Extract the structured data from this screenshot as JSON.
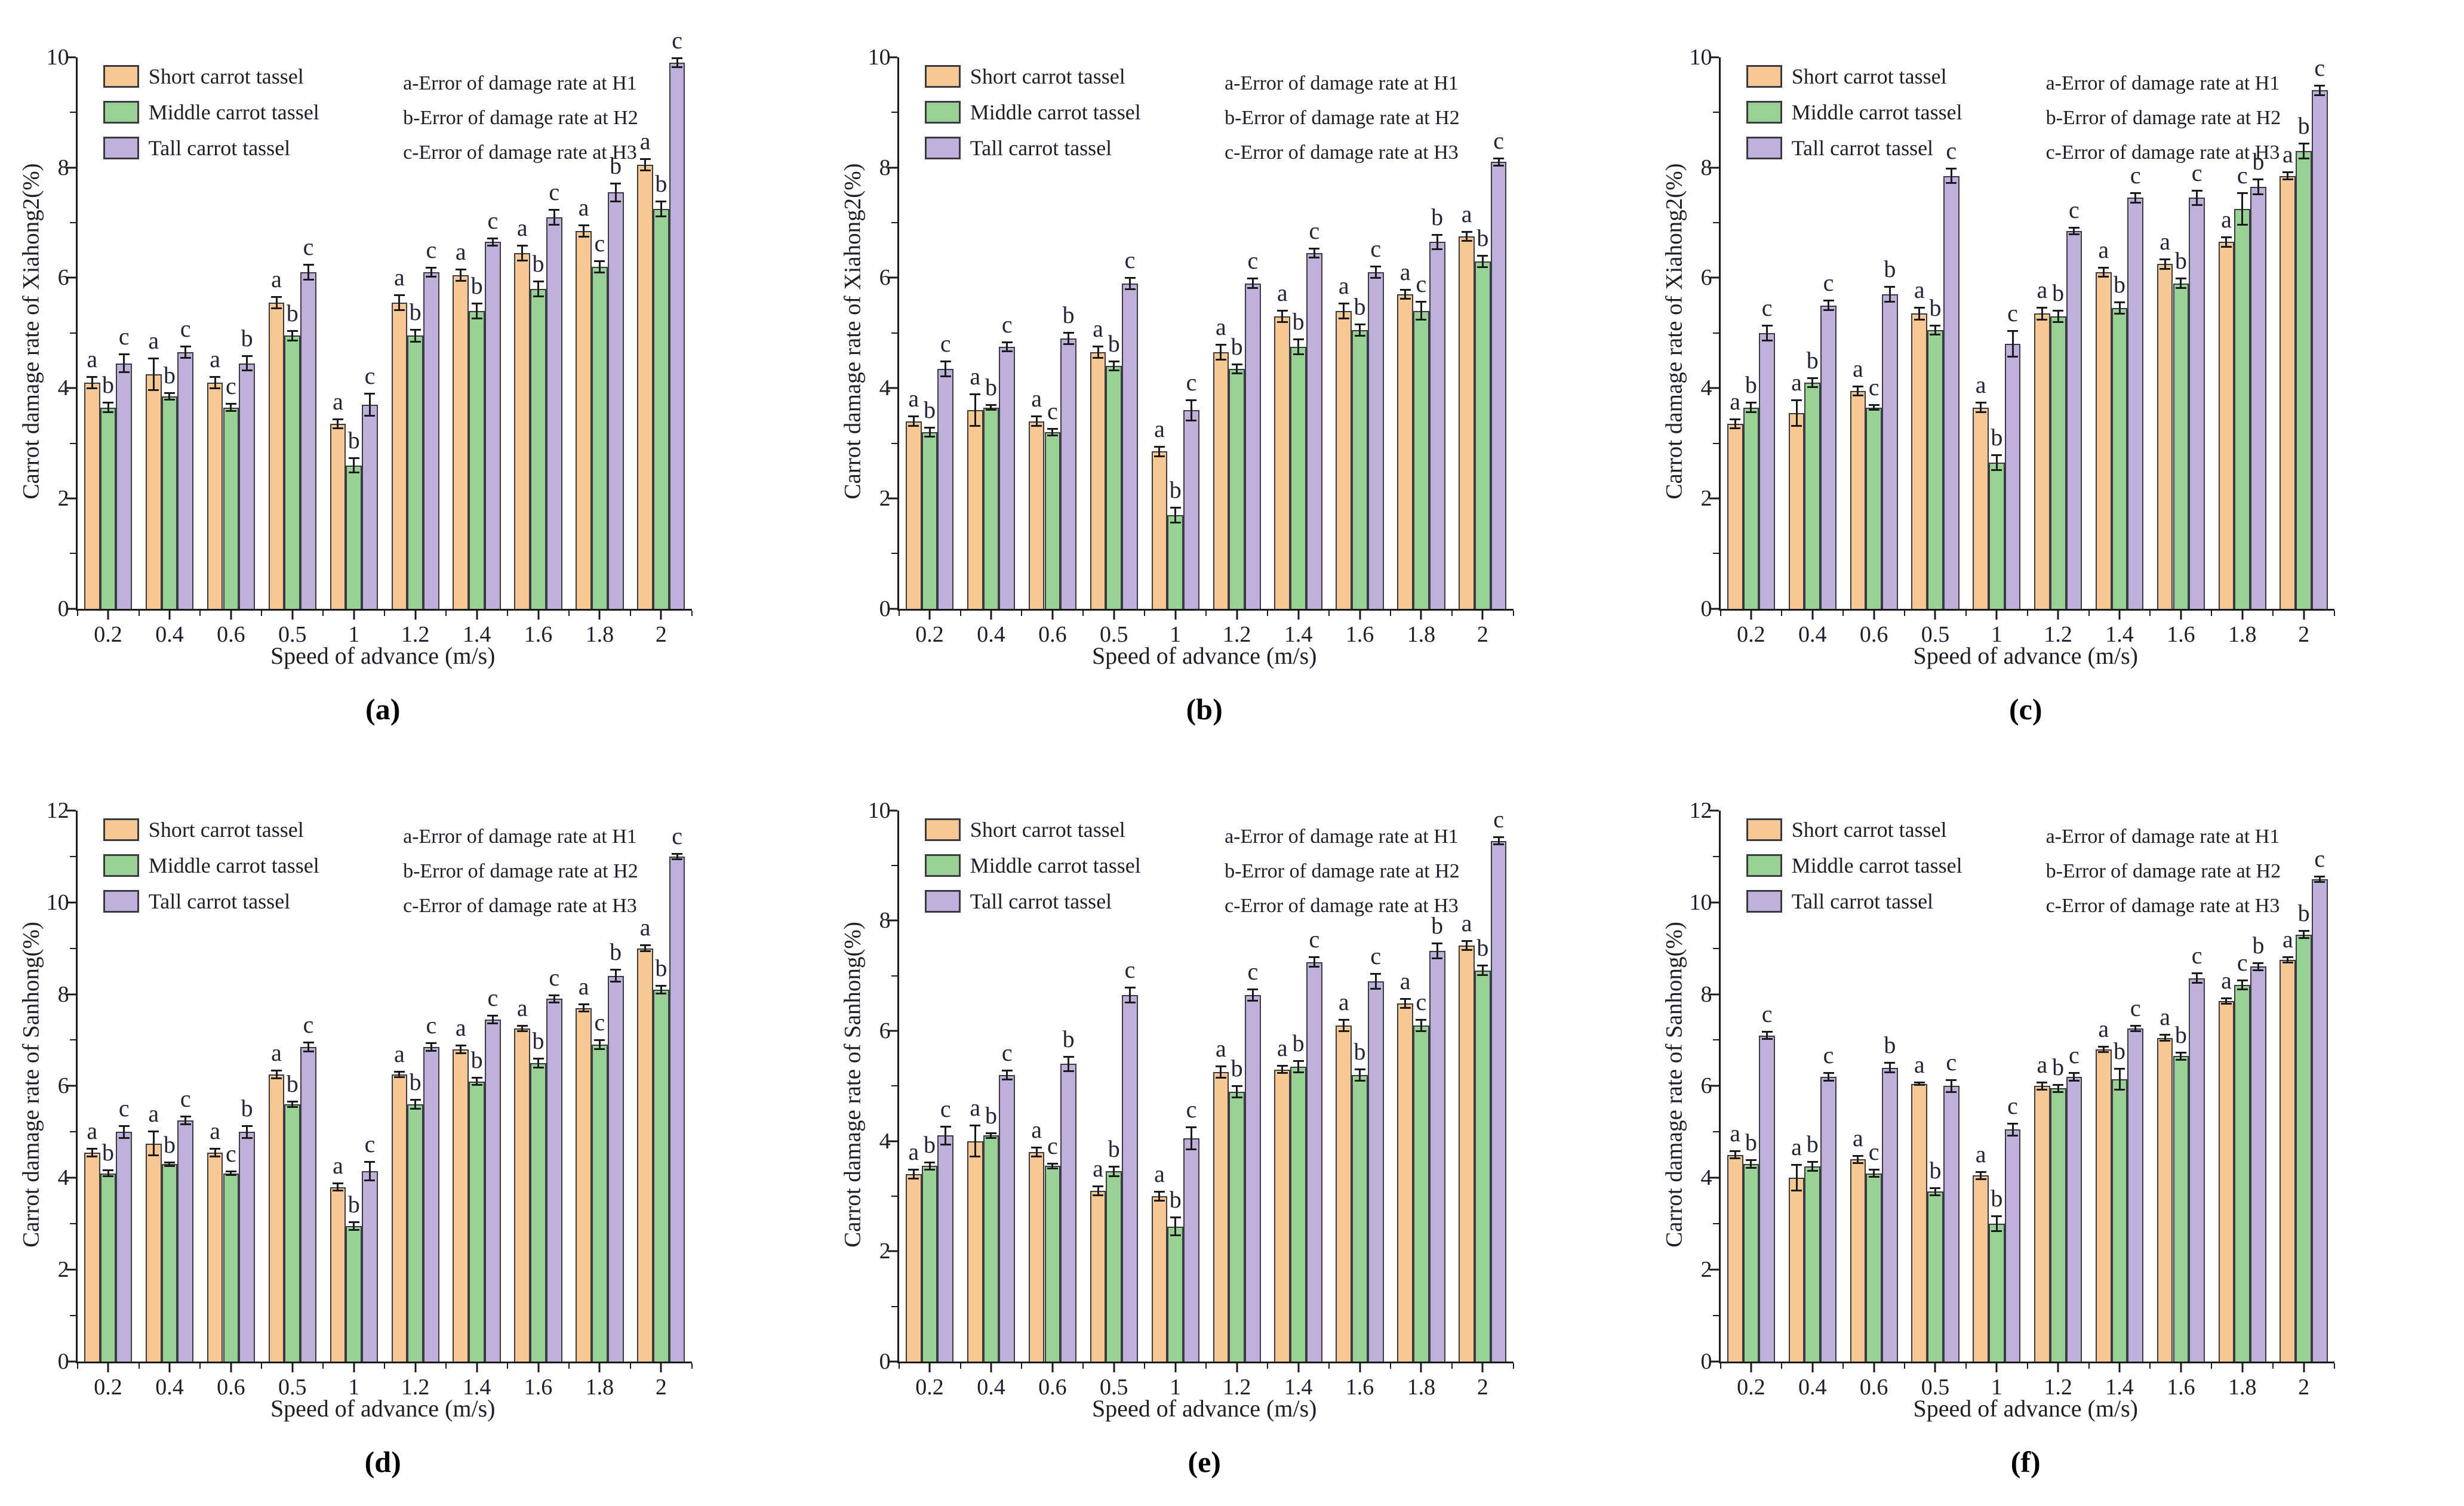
{
  "figure": {
    "x_label": "Speed of advance (m/s)",
    "legend_labels": [
      "Short carrot tassel",
      "Middle carrot tassel",
      "Tall carrot tassel"
    ],
    "notes": [
      "a-Error of damage rate at H1",
      "b-Error of damage rate at H2",
      "c-Error of damage rate at H3"
    ],
    "colors": {
      "short": "#F8C893",
      "middle": "#97D194",
      "tall": "#BFB0DB",
      "bar_border": "#3a3a42",
      "axis": "#1a1a1a",
      "text": "#1d1d2b"
    }
  },
  "chart_data": [
    {
      "panel_label": "(a)",
      "type": "bar",
      "ylabel": "Carrot damage rate of Xiahong2(%)",
      "xlabel": "Speed of advance (m/s)",
      "ylim": [
        0,
        10
      ],
      "ytick_step": 2,
      "grid": false,
      "legend_position": "top-left-inside",
      "categories": [
        "0.2",
        "0.4",
        "0.6",
        "0.5",
        "1",
        "1.2",
        "1.4",
        "1.6",
        "1.8",
        "2"
      ],
      "series": [
        {
          "name": "Short carrot tassel",
          "values": [
            4.1,
            4.25,
            4.1,
            5.55,
            3.35,
            5.55,
            6.05,
            6.45,
            6.85,
            8.05
          ],
          "errors": [
            0.12,
            0.3,
            0.12,
            0.12,
            0.1,
            0.15,
            0.12,
            0.15,
            0.12,
            0.12
          ]
        },
        {
          "name": "Middle carrot tassel",
          "values": [
            3.65,
            3.85,
            3.65,
            4.95,
            2.6,
            4.95,
            5.4,
            5.8,
            6.2,
            7.25
          ],
          "errors": [
            0.1,
            0.08,
            0.08,
            0.1,
            0.15,
            0.12,
            0.15,
            0.15,
            0.12,
            0.15
          ]
        },
        {
          "name": "Tall carrot tassel",
          "values": [
            4.45,
            4.65,
            4.45,
            6.1,
            3.7,
            6.1,
            6.65,
            7.1,
            7.55,
            9.9
          ],
          "errors": [
            0.18,
            0.12,
            0.15,
            0.15,
            0.22,
            0.1,
            0.08,
            0.15,
            0.18,
            0.1
          ]
        }
      ],
      "sig_letters": [
        [
          "a",
          "b",
          "c"
        ],
        [
          "a",
          "b",
          "c"
        ],
        [
          "a",
          "c",
          "b"
        ],
        [
          "a",
          "b",
          "c"
        ],
        [
          "a",
          "b",
          "c"
        ],
        [
          "a",
          "b",
          "c"
        ],
        [
          "a",
          "b",
          "c"
        ],
        [
          "a",
          "b",
          "c"
        ],
        [
          "a",
          "c",
          "b"
        ],
        [
          "a",
          "b",
          "c"
        ]
      ]
    },
    {
      "panel_label": "(b)",
      "type": "bar",
      "ylabel": "Carrot damage rate of Xiahong2(%)",
      "xlabel": "Speed of advance (m/s)",
      "ylim": [
        0,
        10
      ],
      "ytick_step": 2,
      "grid": false,
      "legend_position": "top-left-inside",
      "categories": [
        "0.2",
        "0.4",
        "0.6",
        "0.5",
        "1",
        "1.2",
        "1.4",
        "1.6",
        "1.8",
        "2"
      ],
      "series": [
        {
          "name": "Short carrot tassel",
          "values": [
            3.4,
            3.6,
            3.4,
            4.65,
            2.85,
            4.65,
            5.3,
            5.4,
            5.7,
            6.75
          ],
          "errors": [
            0.1,
            0.3,
            0.1,
            0.12,
            0.1,
            0.15,
            0.12,
            0.15,
            0.1,
            0.1
          ]
        },
        {
          "name": "Middle carrot tassel",
          "values": [
            3.2,
            3.65,
            3.2,
            4.4,
            1.7,
            4.35,
            4.75,
            5.05,
            5.4,
            6.3
          ],
          "errors": [
            0.1,
            0.06,
            0.08,
            0.1,
            0.15,
            0.1,
            0.15,
            0.12,
            0.18,
            0.12
          ]
        },
        {
          "name": "Tall carrot tassel",
          "values": [
            4.35,
            4.75,
            4.9,
            5.9,
            3.6,
            5.9,
            6.45,
            6.1,
            6.65,
            8.1
          ],
          "errors": [
            0.15,
            0.1,
            0.12,
            0.12,
            0.2,
            0.1,
            0.1,
            0.12,
            0.15,
            0.08
          ]
        }
      ],
      "sig_letters": [
        [
          "a",
          "b",
          "c"
        ],
        [
          "a",
          "b",
          "c"
        ],
        [
          "a",
          "c",
          "b"
        ],
        [
          "a",
          "b",
          "c"
        ],
        [
          "a",
          "b",
          "c"
        ],
        [
          "a",
          "b",
          "c"
        ],
        [
          "a",
          "b",
          "c"
        ],
        [
          "a",
          "b",
          "c"
        ],
        [
          "a",
          "c",
          "b"
        ],
        [
          "a",
          "b",
          "c"
        ]
      ]
    },
    {
      "panel_label": "(c)",
      "type": "bar",
      "ylabel": "Carrot damage rate of Xiahong2(%)",
      "xlabel": "Speed of advance (m/s)",
      "ylim": [
        0,
        10
      ],
      "ytick_step": 2,
      "grid": false,
      "legend_position": "top-left-inside",
      "categories": [
        "0.2",
        "0.4",
        "0.6",
        "0.5",
        "1",
        "1.2",
        "1.4",
        "1.6",
        "1.8",
        "2"
      ],
      "series": [
        {
          "name": "Short carrot tassel",
          "values": [
            3.35,
            3.55,
            3.95,
            5.35,
            3.65,
            5.35,
            6.1,
            6.25,
            6.65,
            7.85
          ],
          "errors": [
            0.1,
            0.25,
            0.1,
            0.12,
            0.1,
            0.12,
            0.1,
            0.1,
            0.1,
            0.08
          ]
        },
        {
          "name": "Middle carrot tassel",
          "values": [
            3.65,
            4.1,
            3.65,
            5.05,
            2.65,
            5.3,
            5.45,
            5.9,
            7.25,
            8.3
          ],
          "errors": [
            0.1,
            0.1,
            0.06,
            0.1,
            0.15,
            0.12,
            0.12,
            0.1,
            0.3,
            0.15
          ]
        },
        {
          "name": "Tall carrot tassel",
          "values": [
            5.0,
            5.5,
            5.7,
            7.85,
            4.8,
            6.85,
            7.45,
            7.45,
            7.65,
            9.4
          ],
          "errors": [
            0.15,
            0.1,
            0.15,
            0.15,
            0.25,
            0.08,
            0.1,
            0.15,
            0.15,
            0.1
          ]
        }
      ],
      "sig_letters": [
        [
          "a",
          "b",
          "c"
        ],
        [
          "a",
          "b",
          "c"
        ],
        [
          "a",
          "c",
          "b"
        ],
        [
          "a",
          "b",
          "c"
        ],
        [
          "a",
          "b",
          "c"
        ],
        [
          "a",
          "b",
          "c"
        ],
        [
          "a",
          "b",
          "c"
        ],
        [
          "a",
          "b",
          "c"
        ],
        [
          "a",
          "c",
          "b"
        ],
        [
          "a",
          "b",
          "c"
        ]
      ]
    },
    {
      "panel_label": "(d)",
      "type": "bar",
      "ylabel": "Carrot damage rate of Sanhong(%)",
      "xlabel": "Speed of advance (m/s)",
      "ylim": [
        0,
        12
      ],
      "ytick_step": 2,
      "grid": false,
      "legend_position": "top-left-inside",
      "categories": [
        "0.2",
        "0.4",
        "0.6",
        "0.5",
        "1",
        "1.2",
        "1.4",
        "1.6",
        "1.8",
        "2"
      ],
      "series": [
        {
          "name": "Short carrot tassel",
          "values": [
            4.55,
            4.75,
            4.55,
            6.25,
            3.8,
            6.25,
            6.8,
            7.25,
            7.7,
            9.0
          ],
          "errors": [
            0.1,
            0.28,
            0.1,
            0.1,
            0.1,
            0.08,
            0.1,
            0.08,
            0.1,
            0.08
          ]
        },
        {
          "name": "Middle carrot tassel",
          "values": [
            4.1,
            4.3,
            4.1,
            5.6,
            2.95,
            5.6,
            6.1,
            6.5,
            6.9,
            8.1
          ],
          "errors": [
            0.08,
            0.06,
            0.06,
            0.08,
            0.1,
            0.12,
            0.1,
            0.12,
            0.12,
            0.1
          ]
        },
        {
          "name": "Tall carrot tassel",
          "values": [
            5.0,
            5.25,
            5.0,
            6.85,
            4.15,
            6.85,
            7.45,
            7.9,
            8.4,
            11.0
          ],
          "errors": [
            0.15,
            0.1,
            0.15,
            0.12,
            0.22,
            0.1,
            0.1,
            0.1,
            0.15,
            0.08
          ]
        }
      ],
      "sig_letters": [
        [
          "a",
          "b",
          "c"
        ],
        [
          "a",
          "b",
          "c"
        ],
        [
          "a",
          "c",
          "b"
        ],
        [
          "a",
          "b",
          "c"
        ],
        [
          "a",
          "b",
          "c"
        ],
        [
          "a",
          "b",
          "c"
        ],
        [
          "a",
          "b",
          "c"
        ],
        [
          "a",
          "b",
          "c"
        ],
        [
          "a",
          "c",
          "b"
        ],
        [
          "a",
          "b",
          "c"
        ]
      ]
    },
    {
      "panel_label": "(e)",
      "type": "bar",
      "ylabel": "Carrot damage rate of Sanhong(%)",
      "xlabel": "Speed of advance (m/s)",
      "ylim": [
        0,
        10
      ],
      "ytick_step": 2,
      "grid": false,
      "legend_position": "top-left-inside",
      "categories": [
        "0.2",
        "0.4",
        "0.6",
        "0.5",
        "1",
        "1.2",
        "1.4",
        "1.6",
        "1.8",
        "2"
      ],
      "series": [
        {
          "name": "Short carrot tassel",
          "values": [
            3.4,
            4.0,
            3.8,
            3.1,
            3.0,
            5.25,
            5.3,
            6.1,
            6.5,
            7.55
          ],
          "errors": [
            0.1,
            0.3,
            0.1,
            0.1,
            0.1,
            0.12,
            0.08,
            0.12,
            0.1,
            0.1
          ]
        },
        {
          "name": "Middle carrot tassel",
          "values": [
            3.55,
            4.1,
            3.55,
            3.45,
            2.45,
            4.9,
            5.35,
            5.2,
            6.1,
            7.1
          ],
          "errors": [
            0.08,
            0.06,
            0.06,
            0.1,
            0.18,
            0.12,
            0.12,
            0.12,
            0.12,
            0.1
          ]
        },
        {
          "name": "Tall carrot tassel",
          "values": [
            4.1,
            5.2,
            5.4,
            6.65,
            4.05,
            6.65,
            7.25,
            6.9,
            7.45,
            9.45
          ],
          "errors": [
            0.18,
            0.1,
            0.15,
            0.15,
            0.22,
            0.12,
            0.1,
            0.15,
            0.15,
            0.08
          ]
        }
      ],
      "sig_letters": [
        [
          "a",
          "b",
          "c"
        ],
        [
          "a",
          "b",
          "c"
        ],
        [
          "a",
          "c",
          "b"
        ],
        [
          "a",
          "b",
          "c"
        ],
        [
          "a",
          "b",
          "c"
        ],
        [
          "a",
          "b",
          "c"
        ],
        [
          "a",
          "b",
          "c"
        ],
        [
          "a",
          "b",
          "c"
        ],
        [
          "a",
          "c",
          "b"
        ],
        [
          "a",
          "b",
          "c"
        ]
      ]
    },
    {
      "panel_label": "(f)",
      "type": "bar",
      "ylabel": "Carrot damage rate of Sanhong(%)",
      "xlabel": "Speed of advance (m/s)",
      "ylim": [
        0,
        12
      ],
      "ytick_step": 2,
      "grid": false,
      "legend_position": "top-left-inside",
      "categories": [
        "0.2",
        "0.4",
        "0.6",
        "0.5",
        "1",
        "1.2",
        "1.4",
        "1.6",
        "1.8",
        "2"
      ],
      "series": [
        {
          "name": "Short carrot tassel",
          "values": [
            4.5,
            4.0,
            4.4,
            6.05,
            4.05,
            6.0,
            6.8,
            7.05,
            7.85,
            8.75
          ],
          "errors": [
            0.1,
            0.3,
            0.1,
            0.05,
            0.1,
            0.1,
            0.08,
            0.08,
            0.08,
            0.08
          ]
        },
        {
          "name": "Middle carrot tassel",
          "values": [
            4.3,
            4.25,
            4.1,
            3.7,
            3.0,
            5.95,
            6.15,
            6.65,
            8.2,
            9.3
          ],
          "errors": [
            0.1,
            0.12,
            0.1,
            0.1,
            0.18,
            0.1,
            0.25,
            0.1,
            0.12,
            0.1
          ]
        },
        {
          "name": "Tall carrot tassel",
          "values": [
            7.1,
            6.2,
            6.4,
            6.0,
            5.05,
            6.2,
            7.25,
            8.35,
            8.6,
            10.5
          ],
          "errors": [
            0.1,
            0.1,
            0.12,
            0.15,
            0.15,
            0.1,
            0.08,
            0.12,
            0.1,
            0.08
          ]
        }
      ],
      "sig_letters": [
        [
          "a",
          "b",
          "c"
        ],
        [
          "a",
          "b",
          "c"
        ],
        [
          "a",
          "c",
          "b"
        ],
        [
          "a",
          "b",
          "c"
        ],
        [
          "a",
          "b",
          "c"
        ],
        [
          "a",
          "b",
          "c"
        ],
        [
          "a",
          "b",
          "c"
        ],
        [
          "a",
          "b",
          "c"
        ],
        [
          "a",
          "c",
          "b"
        ],
        [
          "a",
          "b",
          "c"
        ]
      ]
    }
  ]
}
